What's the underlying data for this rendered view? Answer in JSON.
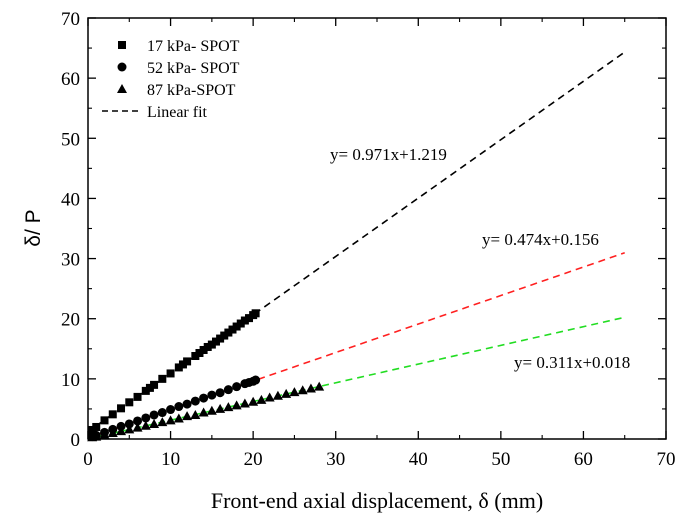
{
  "chart_data": {
    "type": "scatter",
    "xlabel": "Front-end axial displacement, δ (mm)",
    "ylabel": "δ/ P",
    "xlim": [
      0,
      70
    ],
    "ylim": [
      0,
      70
    ],
    "xticks": [
      0,
      10,
      20,
      30,
      40,
      50,
      60,
      70
    ],
    "yticks": [
      0,
      10,
      20,
      30,
      40,
      50,
      60,
      70
    ],
    "legend_position": "top-left",
    "series": [
      {
        "name": "17 kPa- SPOT",
        "marker": "square",
        "color": "#000000",
        "x": [
          0.5,
          1.0,
          2.0,
          3.0,
          4.0,
          5.0,
          6.0,
          7.0,
          7.5,
          8.0,
          9.0,
          10.0,
          11.0,
          11.5,
          12.0,
          13.0,
          13.5,
          14.0,
          14.5,
          15.0,
          15.5,
          16.0,
          16.5,
          17.0,
          17.5,
          18.0,
          18.5,
          19.0,
          19.5,
          20.0,
          20.3
        ],
        "y": [
          1.5,
          2.0,
          3.1,
          4.1,
          5.1,
          6.1,
          7.0,
          8.0,
          8.5,
          9.0,
          10.0,
          10.9,
          11.9,
          12.4,
          12.9,
          13.8,
          14.3,
          14.8,
          15.3,
          15.7,
          16.2,
          16.7,
          17.2,
          17.7,
          18.2,
          18.7,
          19.2,
          19.7,
          20.1,
          20.6,
          20.9
        ]
      },
      {
        "name": "52 kPa- SPOT",
        "marker": "circle",
        "color": "#000000",
        "x": [
          0.5,
          1.0,
          2.0,
          3.0,
          4.0,
          5.0,
          6.0,
          7.0,
          8.0,
          9.0,
          10.0,
          11.0,
          12.0,
          13.0,
          14.0,
          15.0,
          16.0,
          17.0,
          18.0,
          19.0,
          19.5,
          20.0,
          20.3
        ],
        "y": [
          0.4,
          0.6,
          1.1,
          1.6,
          2.1,
          2.5,
          3.0,
          3.5,
          4.0,
          4.4,
          4.9,
          5.4,
          5.8,
          6.3,
          6.8,
          7.3,
          7.7,
          8.2,
          8.7,
          9.2,
          9.4,
          9.6,
          9.8
        ]
      },
      {
        "name": "87 kPa-SPOT",
        "marker": "triangle",
        "color": "#000000",
        "x": [
          0.5,
          1.0,
          2.0,
          3.0,
          4.0,
          5.0,
          6.0,
          7.0,
          8.0,
          9.0,
          10.0,
          11.0,
          12.0,
          13.0,
          14.0,
          15.0,
          16.0,
          17.0,
          18.0,
          19.0,
          20.0,
          21.0,
          22.0,
          23.0,
          24.0,
          25.0,
          26.0,
          27.0,
          28.0
        ],
        "y": [
          0.3,
          0.4,
          0.7,
          1.0,
          1.3,
          1.6,
          1.9,
          2.2,
          2.5,
          2.8,
          3.1,
          3.4,
          3.8,
          4.0,
          4.4,
          4.7,
          5.0,
          5.3,
          5.6,
          5.9,
          6.2,
          6.5,
          6.9,
          7.2,
          7.5,
          7.8,
          8.1,
          8.4,
          8.7
        ]
      }
    ],
    "fits": [
      {
        "slope": 0.971,
        "intercept": 1.219,
        "x_range": [
          0,
          65
        ],
        "color": "#000000",
        "equation": "y= 0.971x+1.219"
      },
      {
        "slope": 0.474,
        "intercept": 0.156,
        "x_range": [
          0,
          65
        ],
        "color": "#ff2020",
        "equation": "y= 0.474x+0.156"
      },
      {
        "slope": 0.311,
        "intercept": 0.018,
        "x_range": [
          0,
          65
        ],
        "color": "#22dd22",
        "equation": "y= 0.311x+0.018"
      }
    ],
    "legend_fit_label": "Linear fit"
  }
}
